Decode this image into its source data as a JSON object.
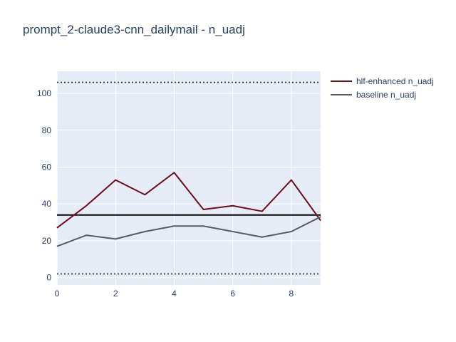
{
  "chart_data": {
    "type": "line",
    "title": "prompt_2-claude3-cnn_dailymail - n_uadj",
    "xlabel": "",
    "ylabel": "",
    "x": [
      0,
      1,
      2,
      3,
      4,
      5,
      6,
      7,
      8,
      9
    ],
    "xlim": [
      0,
      9
    ],
    "ylim": [
      -4,
      112
    ],
    "x_ticks": [
      0,
      2,
      4,
      6,
      8
    ],
    "y_ticks": [
      0,
      20,
      40,
      60,
      80,
      100
    ],
    "grid": true,
    "legend_position": "top-right",
    "series": [
      {
        "name": "hlf-enhanced n_uadj",
        "color": "#6b0d1e",
        "values": [
          27,
          39,
          53,
          45,
          57,
          37,
          39,
          36,
          53,
          31
        ]
      },
      {
        "name": "baseline n_uadj",
        "color": "#555c66",
        "values": [
          17,
          23,
          21,
          25,
          28,
          28,
          25,
          22,
          25,
          33
        ]
      }
    ],
    "reference_lines": [
      {
        "y": 34,
        "style": "solid",
        "color": "#000000"
      },
      {
        "y": 106,
        "style": "dotted",
        "color": "#2a2a2a"
      },
      {
        "y": 2,
        "style": "dotted",
        "color": "#2a2a2a"
      }
    ],
    "colors": {
      "plot_background": "#e5ecf6",
      "grid": "#ffffff",
      "text": "#2a3f5f"
    }
  }
}
